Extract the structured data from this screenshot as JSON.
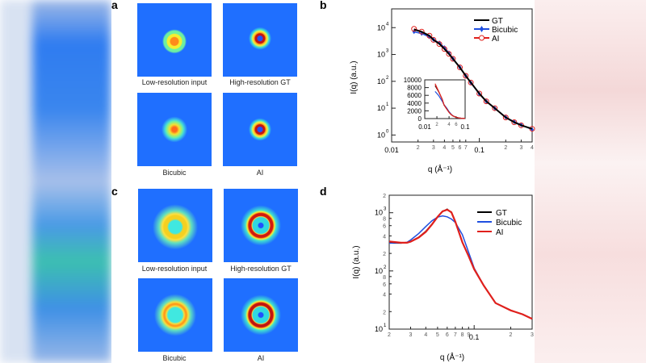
{
  "panels": {
    "a": {
      "label": "a",
      "captions": [
        "Low-resolution input",
        "High-resolution GT",
        "Bicubic",
        "AI"
      ]
    },
    "c": {
      "label": "c",
      "captions": [
        "Low-resolution input",
        "High-resolution GT",
        "Bicubic",
        "AI"
      ]
    },
    "b": {
      "label": "b"
    },
    "d": {
      "label": "d"
    }
  },
  "colors": {
    "GT": "#000000",
    "Bicubic": "#1f4fe0",
    "AI": "#e0201c",
    "heatmap_bg": "#1f6fff"
  },
  "chart_data": [
    {
      "id": "b",
      "type": "line",
      "xscale": "log",
      "yscale": "log",
      "xlabel": "q (Å⁻¹)",
      "ylabel": "I(q) (a.u.)",
      "xlim": [
        0.01,
        0.4
      ],
      "ylim": [
        0.55,
        50000
      ],
      "xticks": [
        {
          "v": 0.01,
          "t": "0.01"
        },
        {
          "v": 0.02,
          "t": "2"
        },
        {
          "v": 0.03,
          "t": "3"
        },
        {
          "v": 0.04,
          "t": "4"
        },
        {
          "v": 0.05,
          "t": "5"
        },
        {
          "v": 0.06,
          "t": "6"
        },
        {
          "v": 0.07,
          "t": "7"
        },
        {
          "v": 0.1,
          "t": "0.1"
        },
        {
          "v": 0.2,
          "t": "2"
        },
        {
          "v": 0.3,
          "t": "3"
        },
        {
          "v": 0.4,
          "t": "4"
        }
      ],
      "yticks": [
        {
          "v": 1,
          "t": "10",
          "e": "0"
        },
        {
          "v": 10,
          "t": "10",
          "e": "1"
        },
        {
          "v": 100,
          "t": "10",
          "e": "2"
        },
        {
          "v": 1000,
          "t": "10",
          "e": "3"
        },
        {
          "v": 10000,
          "t": "10",
          "e": "4"
        }
      ],
      "legend": "top-right",
      "series": [
        {
          "name": "GT",
          "marker": "none",
          "x": [
            0.018,
            0.022,
            0.027,
            0.03,
            0.035,
            0.04,
            0.045,
            0.05,
            0.06,
            0.07,
            0.08,
            0.1,
            0.12,
            0.15,
            0.2,
            0.25,
            0.3,
            0.4
          ],
          "y": [
            8500,
            7000,
            5000,
            3500,
            2500,
            1600,
            1050,
            690,
            330,
            160,
            90,
            35,
            18,
            10,
            4.5,
            3,
            2.3,
            1.7
          ]
        },
        {
          "name": "Bicubic",
          "marker": "diamond",
          "x": [
            0.018,
            0.022,
            0.027,
            0.03,
            0.035,
            0.04,
            0.045,
            0.05,
            0.06,
            0.07,
            0.08,
            0.1,
            0.12,
            0.15,
            0.2,
            0.25,
            0.3,
            0.4
          ],
          "y": [
            7000,
            6000,
            4500,
            3600,
            2700,
            1800,
            1150,
            700,
            330,
            160,
            88,
            34,
            18,
            10,
            4.6,
            3.1,
            2.4,
            1.6
          ]
        },
        {
          "name": "AI",
          "marker": "circle",
          "x": [
            0.018,
            0.022,
            0.027,
            0.03,
            0.035,
            0.04,
            0.045,
            0.05,
            0.06,
            0.07,
            0.08,
            0.1,
            0.12,
            0.15,
            0.2,
            0.25,
            0.3,
            0.4
          ],
          "y": [
            9000,
            7100,
            5000,
            3500,
            2450,
            1600,
            1050,
            690,
            330,
            160,
            90,
            35,
            18,
            10,
            4.5,
            3,
            2.3,
            1.7
          ]
        }
      ],
      "inset": {
        "type": "line",
        "xscale": "log",
        "yscale": "linear",
        "xlim": [
          0.01,
          0.1
        ],
        "ylim": [
          0,
          10000
        ],
        "xticks": [
          {
            "v": 0.01,
            "t": "0.01"
          },
          {
            "v": 0.02,
            "t": "2"
          },
          {
            "v": 0.04,
            "t": "4"
          },
          {
            "v": 0.06,
            "t": "6"
          },
          {
            "v": 0.1,
            "t": "0.1"
          }
        ],
        "yticks": [
          {
            "v": 0,
            "t": "0"
          },
          {
            "v": 2000,
            "t": "2000"
          },
          {
            "v": 4000,
            "t": "4000"
          },
          {
            "v": 6000,
            "t": "6000"
          },
          {
            "v": 8000,
            "t": "8000"
          },
          {
            "v": 10000,
            "t": "10000"
          }
        ]
      }
    },
    {
      "id": "d",
      "type": "line",
      "xscale": "log",
      "yscale": "log",
      "xlabel": "q (Å⁻¹)",
      "ylabel": "I(q) (a.u.)",
      "xlim": [
        0.02,
        0.3
      ],
      "ylim": [
        10,
        2000
      ],
      "xticks": [
        {
          "v": 0.02,
          "t": "2"
        },
        {
          "v": 0.03,
          "t": "3"
        },
        {
          "v": 0.04,
          "t": "4"
        },
        {
          "v": 0.05,
          "t": "5"
        },
        {
          "v": 0.06,
          "t": "6"
        },
        {
          "v": 0.07,
          "t": "7"
        },
        {
          "v": 0.08,
          "t": "8"
        },
        {
          "v": 0.09,
          "t": "9"
        },
        {
          "v": 0.1,
          "t": "0.1"
        },
        {
          "v": 0.2,
          "t": "2"
        },
        {
          "v": 0.3,
          "t": "3"
        }
      ],
      "yticks": [
        {
          "v": 10,
          "t": "10",
          "e": "1"
        },
        {
          "v": 20,
          "t": "2"
        },
        {
          "v": 40,
          "t": "4"
        },
        {
          "v": 60,
          "t": "6"
        },
        {
          "v": 80,
          "t": "8"
        },
        {
          "v": 100,
          "t": "10",
          "e": "2"
        },
        {
          "v": 200,
          "t": "2"
        },
        {
          "v": 400,
          "t": "4"
        },
        {
          "v": 600,
          "t": "6"
        },
        {
          "v": 800,
          "t": "8"
        },
        {
          "v": 1000,
          "t": "10",
          "e": "3"
        },
        {
          "v": 2000,
          "t": "2"
        }
      ],
      "legend": "top-right",
      "series": [
        {
          "name": "GT",
          "x": [
            0.02,
            0.025,
            0.028,
            0.03,
            0.035,
            0.04,
            0.045,
            0.05,
            0.055,
            0.06,
            0.065,
            0.07,
            0.08,
            0.09,
            0.1,
            0.12,
            0.15,
            0.2,
            0.25,
            0.3
          ],
          "y": [
            315,
            300,
            305,
            320,
            380,
            480,
            640,
            850,
            1050,
            1150,
            1000,
            700,
            310,
            180,
            107,
            56,
            28,
            21,
            18,
            15
          ]
        },
        {
          "name": "Bicubic",
          "x": [
            0.02,
            0.025,
            0.028,
            0.03,
            0.035,
            0.04,
            0.045,
            0.05,
            0.055,
            0.06,
            0.065,
            0.07,
            0.08,
            0.09,
            0.1,
            0.12,
            0.15,
            0.2,
            0.25,
            0.3
          ],
          "y": [
            300,
            300,
            310,
            340,
            440,
            580,
            730,
            840,
            880,
            850,
            780,
            680,
            420,
            210,
            112,
            56,
            28,
            21,
            18,
            15
          ]
        },
        {
          "name": "AI",
          "x": [
            0.02,
            0.025,
            0.028,
            0.03,
            0.035,
            0.04,
            0.045,
            0.05,
            0.055,
            0.06,
            0.065,
            0.07,
            0.08,
            0.09,
            0.1,
            0.12,
            0.15,
            0.2,
            0.25,
            0.3
          ],
          "y": [
            320,
            305,
            305,
            318,
            375,
            470,
            630,
            850,
            1060,
            1130,
            1020,
            700,
            310,
            180,
            107,
            56,
            28,
            21,
            18,
            15
          ]
        }
      ]
    }
  ]
}
